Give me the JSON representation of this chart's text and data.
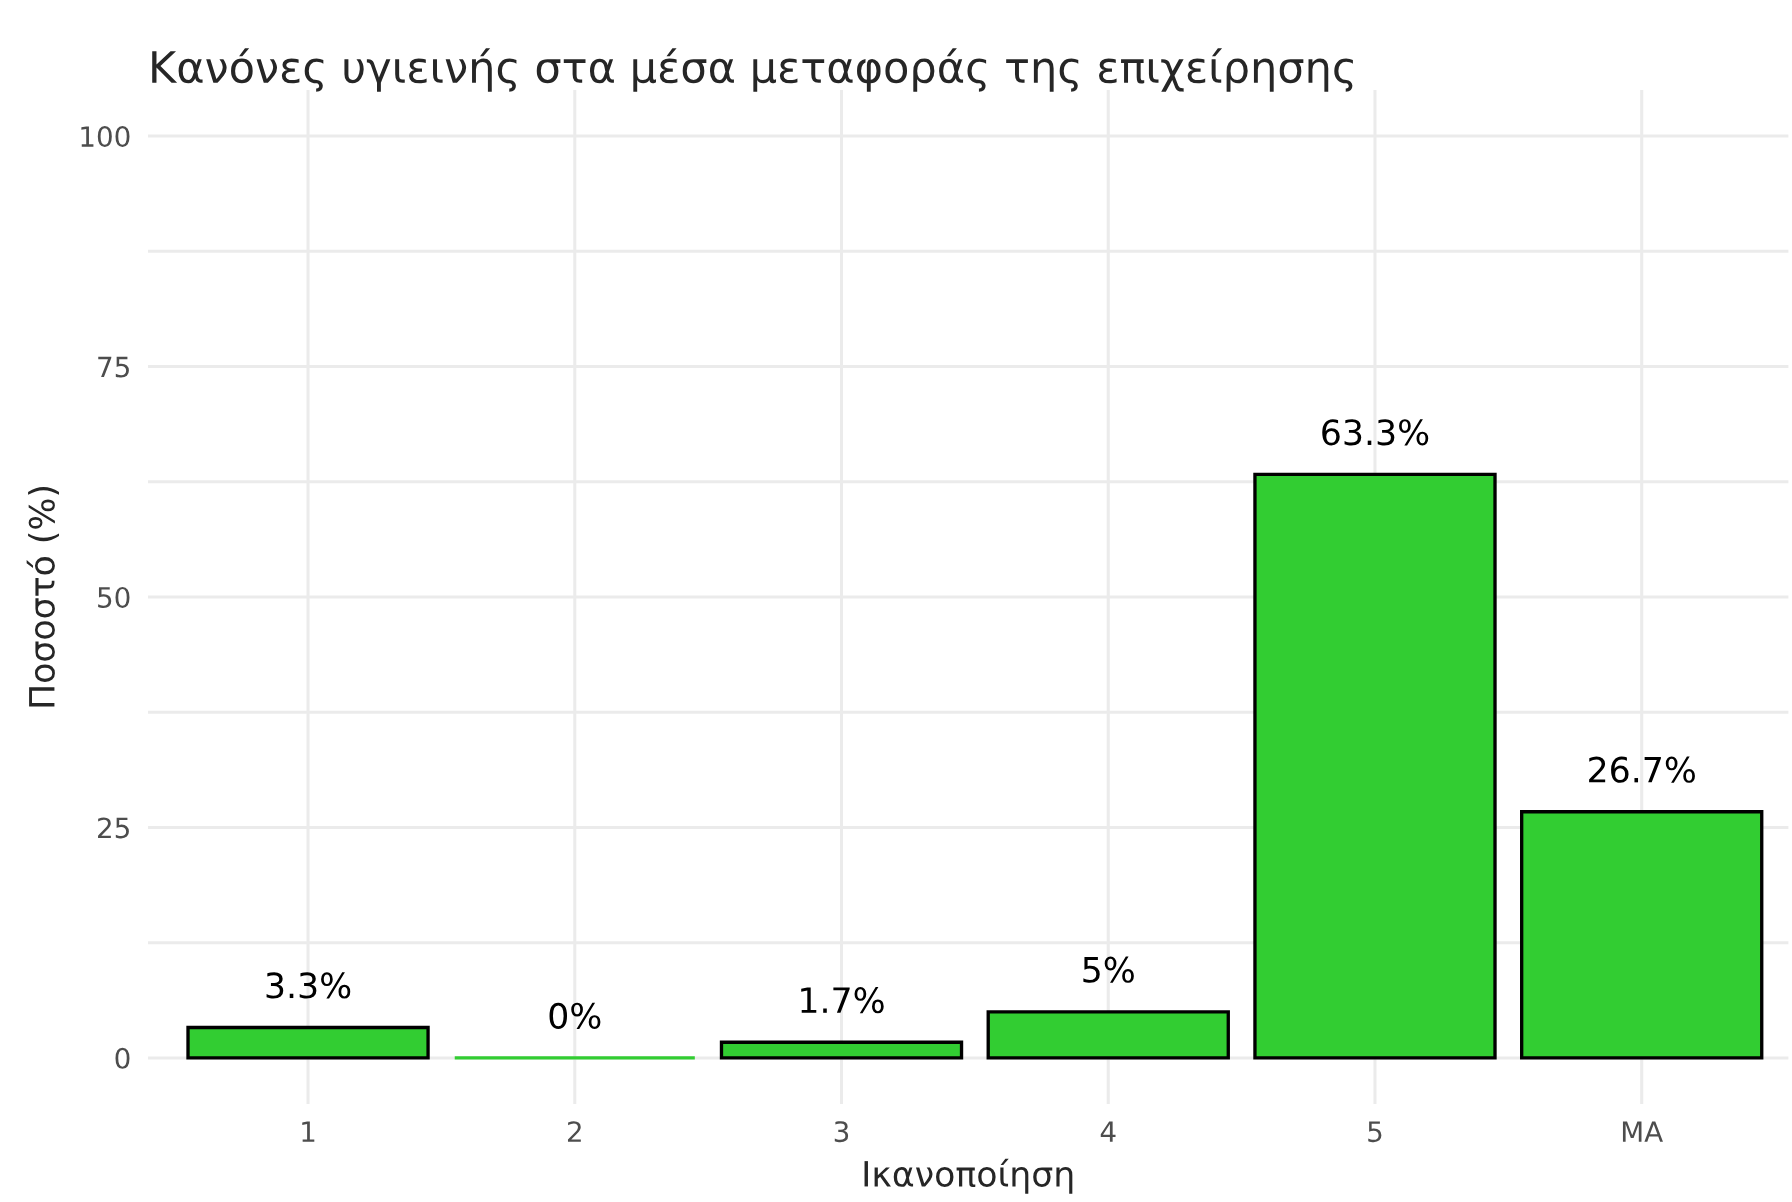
{
  "chart_data": {
    "type": "bar",
    "title": "Κανόνες υγιεινής στα μέσα μεταφοράς της επιχείρησης",
    "xlabel": "Ικανοποίηση",
    "ylabel": "Ποσοστό (%)",
    "categories": [
      "1",
      "2",
      "3",
      "4",
      "5",
      "ΜΑ"
    ],
    "values": [
      3.3,
      0,
      1.7,
      5,
      63.3,
      26.7
    ],
    "value_labels": [
      "3.3%",
      "0%",
      "1.7%",
      "5%",
      "63.3%",
      "26.7%"
    ],
    "color": "#32cd32",
    "ylim": [
      -5,
      105
    ],
    "yticks": [
      0,
      {
        "value": 12.5,
        "label": null
      },
      25,
      {
        "value": 37.5,
        "label": null
      },
      50,
      {
        "value": 62.5,
        "label": null
      },
      75,
      {
        "value": 87.5,
        "label": null
      },
      100
    ],
    "grid": true
  }
}
